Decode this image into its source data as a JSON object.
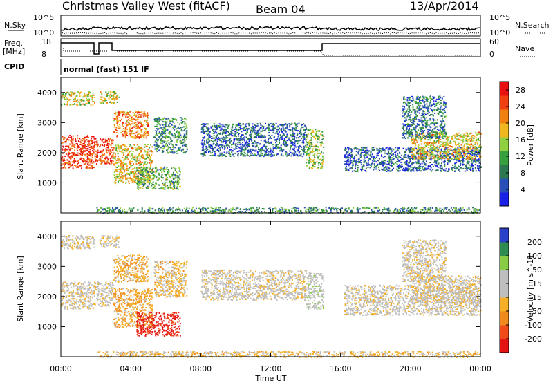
{
  "header": {
    "station": "Christmas Valley West (fitACF)",
    "beam": "Beam 04",
    "date": "13/Apr/2014"
  },
  "status_panel": {
    "nsky_label": "N.Sky",
    "nsky_ticks": [
      "10^5",
      "10^0"
    ],
    "nsearch_label": "N.Search",
    "freq_label_1": "Freq.",
    "freq_label_2": "[MHz]",
    "freq_ticks": [
      "18",
      "8"
    ],
    "nave_label": "Nave",
    "nave_ticks": [
      "60",
      "0"
    ],
    "cpid_label": "CPID",
    "cpid_value": "normal (fast) 151 IF"
  },
  "colors": {
    "power": [
      "#1a20e6",
      "#2850b8",
      "#2d7850",
      "#35a03c",
      "#90d040",
      "#f0b820",
      "#f08010",
      "#f04010",
      "#e81010"
    ],
    "velocity": [
      "#e41414",
      "#f04a18",
      "#f08a1e",
      "#f5b025",
      "#bebebe",
      "#bebebe",
      "#88cc44",
      "#2e8c50",
      "#2a40c8"
    ]
  },
  "chart_data": [
    {
      "type": "heatmap",
      "name": "power",
      "ylabel": "Slant Range [km]",
      "yticks": [
        "1000",
        "2000",
        "3000",
        "4000"
      ],
      "ylim": [
        0,
        4500
      ],
      "xlim": [
        0,
        24
      ],
      "colorbar_label": "Power [dB]",
      "colorbar_ticks": [
        "4",
        "8",
        "12",
        "16",
        "20",
        "24",
        "28"
      ],
      "colorbar_range": [
        0,
        30
      ],
      "regions": [
        {
          "t0": 0.0,
          "t1": 1.9,
          "r0": 1500,
          "r1": 2600,
          "val": 26
        },
        {
          "t0": 0.0,
          "t1": 1.9,
          "r0": 3600,
          "r1": 4050,
          "val": 17
        },
        {
          "t0": 1.9,
          "t1": 3.0,
          "r0": 1650,
          "r1": 2500,
          "val": 26
        },
        {
          "t0": 2.2,
          "t1": 3.3,
          "r0": 3650,
          "r1": 4050,
          "val": 17
        },
        {
          "t0": 3.0,
          "t1": 5.0,
          "r0": 2500,
          "r1": 3400,
          "val": 22
        },
        {
          "t0": 3.0,
          "t1": 5.2,
          "r0": 1000,
          "r1": 2300,
          "val": 18
        },
        {
          "t0": 4.3,
          "t1": 6.8,
          "r0": 800,
          "r1": 1550,
          "val": 12
        },
        {
          "t0": 5.3,
          "t1": 7.2,
          "r0": 2000,
          "r1": 3200,
          "val": 10
        },
        {
          "t0": 8.0,
          "t1": 14.0,
          "r0": 1900,
          "r1": 3000,
          "val": 6
        },
        {
          "t0": 14.0,
          "t1": 15.0,
          "r0": 1500,
          "r1": 2800,
          "val": 14
        },
        {
          "t0": 16.2,
          "t1": 24.0,
          "r0": 1400,
          "r1": 2200,
          "val": 6
        },
        {
          "t0": 20.0,
          "t1": 24.0,
          "r0": 1800,
          "r1": 2700,
          "val": 18
        },
        {
          "t0": 19.5,
          "t1": 22.0,
          "r0": 2500,
          "r1": 3900,
          "val": 8
        },
        {
          "t0": 2.0,
          "t1": 24.0,
          "r0": 0,
          "r1": 200,
          "val": 10
        }
      ]
    },
    {
      "type": "heatmap",
      "name": "velocity",
      "ylabel": "Slant Range [km]",
      "yticks": [
        "1000",
        "2000",
        "3000",
        "4000"
      ],
      "ylim": [
        0,
        4500
      ],
      "xlabel": "Time UT",
      "xticks": [
        "00:00",
        "04:00",
        "08:00",
        "12:00",
        "16:00",
        "20:00",
        "00:00"
      ],
      "xlim": [
        0,
        24
      ],
      "colorbar_label": "Velocity [m s^-1]",
      "colorbar_ticks": [
        "200",
        "100",
        "50",
        "15",
        "-15",
        "-50",
        "-100",
        "-200"
      ],
      "colorbar_range": [
        -250,
        250
      ],
      "regions": [
        {
          "t0": 0.0,
          "t1": 1.9,
          "r0": 1600,
          "r1": 2500,
          "val": 0
        },
        {
          "t0": 0.0,
          "t1": 1.9,
          "r0": 3600,
          "r1": 4050,
          "val": 0
        },
        {
          "t0": 1.9,
          "t1": 3.0,
          "r0": 1700,
          "r1": 2500,
          "val": 0
        },
        {
          "t0": 2.2,
          "t1": 3.3,
          "r0": 3650,
          "r1": 4050,
          "val": 0
        },
        {
          "t0": 3.0,
          "t1": 5.0,
          "r0": 2500,
          "r1": 3400,
          "val": -60
        },
        {
          "t0": 3.0,
          "t1": 5.2,
          "r0": 1000,
          "r1": 2300,
          "val": -70
        },
        {
          "t0": 4.3,
          "t1": 6.8,
          "r0": 700,
          "r1": 1500,
          "val": -220
        },
        {
          "t0": 5.3,
          "t1": 7.2,
          "r0": 2000,
          "r1": 3200,
          "val": -40
        },
        {
          "t0": 8.0,
          "t1": 14.0,
          "r0": 1900,
          "r1": 2900,
          "val": 0
        },
        {
          "t0": 14.0,
          "t1": 15.0,
          "r0": 1600,
          "r1": 2800,
          "val": 40
        },
        {
          "t0": 16.2,
          "t1": 24.0,
          "r0": 1400,
          "r1": 2400,
          "val": 0
        },
        {
          "t0": 20.0,
          "t1": 24.0,
          "r0": 1800,
          "r1": 2700,
          "val": 0
        },
        {
          "t0": 19.5,
          "t1": 22.0,
          "r0": 2500,
          "r1": 3900,
          "val": 0
        },
        {
          "t0": 2.0,
          "t1": 24.0,
          "r0": 0,
          "r1": 200,
          "val": -40
        }
      ]
    }
  ]
}
